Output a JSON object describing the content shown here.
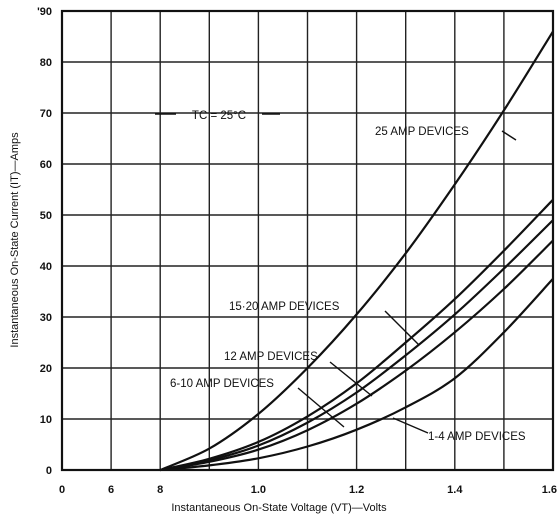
{
  "chart_data": {
    "type": "line",
    "xlabel": "Instantaneous On-State Voltage (VT)—Volts",
    "ylabel": "Instantaneous On-State Current (IT)—Amps",
    "ylim": [
      0,
      90
    ],
    "x_ticks": [
      "0",
      "6",
      "8",
      "1.0",
      "1.2",
      "1.4",
      "1.6"
    ],
    "y_ticks": [
      "0",
      "10",
      "20",
      "30",
      "40",
      "50",
      "60",
      "70",
      "80",
      "90"
    ],
    "y_tick_labels_display": [
      "0",
      "10",
      "20",
      "30",
      "40",
      "50",
      "60",
      "70",
      "80",
      "'90"
    ],
    "grid": true,
    "condition_label": "TC = 25°C",
    "series": [
      {
        "name": "25 AMP DEVICES",
        "x": [
          0.8,
          0.9,
          1.0,
          1.1,
          1.2,
          1.3,
          1.4,
          1.5,
          1.6
        ],
        "y": [
          0,
          4.2,
          11,
          20,
          30.5,
          42.5,
          56,
          70.5,
          86
        ]
      },
      {
        "name": "15-20 AMP DEVICES",
        "x": [
          0.8,
          0.9,
          1.0,
          1.1,
          1.2,
          1.3,
          1.4,
          1.5,
          1.6
        ],
        "y": [
          0,
          2.2,
          5.5,
          10.5,
          17,
          25,
          33.5,
          43,
          53
        ]
      },
      {
        "name": "12 AMP DEVICES",
        "x": [
          0.8,
          0.9,
          1.0,
          1.1,
          1.2,
          1.3,
          1.4,
          1.5,
          1.6
        ],
        "y": [
          0,
          1.9,
          4.8,
          9.3,
          15.2,
          22.5,
          30.5,
          39.5,
          49
        ]
      },
      {
        "name": "6-10 AMP DEVICES",
        "x": [
          0.8,
          0.9,
          1.0,
          1.1,
          1.2,
          1.3,
          1.4,
          1.5,
          1.6
        ],
        "y": [
          0,
          1.6,
          4.0,
          7.8,
          13,
          19.5,
          27,
          35.5,
          45
        ]
      },
      {
        "name": "1-4 AMP DEVICES",
        "x": [
          0.8,
          0.9,
          1.0,
          1.1,
          1.2,
          1.3,
          1.4,
          1.5,
          1.6
        ],
        "y": [
          0,
          0.9,
          2.3,
          4.6,
          7.9,
          12.3,
          18,
          27,
          37.5
        ]
      }
    ],
    "labels_display": [
      "25 AMP DEVICES",
      "15·20 AMP DEVICES",
      "12 AMP DEVICES",
      "6-10 AMP DEVICES",
      "1-4 AMP DEVICES"
    ]
  }
}
